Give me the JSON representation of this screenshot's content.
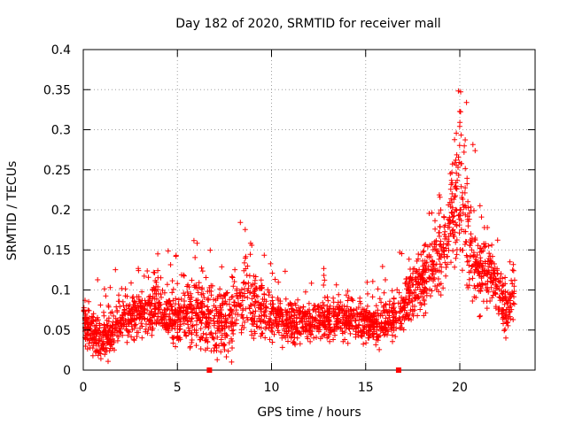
{
  "chart_data": {
    "type": "scatter",
    "title": "Day 182 of 2020, SRMTID for receiver mall",
    "xlabel": "GPS time / hours",
    "ylabel": "SRMTID / TECUs",
    "xlim": [
      0,
      24
    ],
    "ylim": [
      0,
      0.4
    ],
    "x_ticks": [
      0,
      5,
      10,
      15,
      20
    ],
    "x_tick_labels": [
      "0",
      "5",
      "10",
      "15",
      "20"
    ],
    "y_ticks": [
      0,
      0.05,
      0.1,
      0.15,
      0.2,
      0.25,
      0.3,
      0.35,
      0.4
    ],
    "y_tick_labels": [
      "0",
      "0.05",
      "0.1",
      "0.15",
      "0.2",
      "0.25",
      "0.3",
      "0.35",
      "0.4"
    ],
    "grid": true,
    "marker": "+",
    "color": "#ff0000",
    "gap_markers_x": [
      6.7,
      16.75
    ],
    "envelope": {
      "description": "approximate mean level vs hour (data is dense scatter around this)",
      "x": [
        0,
        0.5,
        1,
        2,
        3,
        4,
        5,
        6,
        7,
        8,
        8.5,
        9,
        10,
        11,
        12,
        13,
        14,
        15,
        16,
        17,
        17.5,
        18,
        19,
        19.5,
        20,
        20.5,
        21,
        21.5,
        22,
        22.5,
        23
      ],
      "y": [
        0.06,
        0.045,
        0.035,
        0.06,
        0.07,
        0.08,
        0.06,
        0.07,
        0.06,
        0.07,
        0.1,
        0.08,
        0.07,
        0.06,
        0.06,
        0.06,
        0.065,
        0.06,
        0.06,
        0.07,
        0.1,
        0.11,
        0.14,
        0.19,
        0.22,
        0.16,
        0.12,
        0.13,
        0.1,
        0.07,
        0.11
      ]
    },
    "spread": {
      "x": [
        0,
        2,
        4,
        8.3,
        10,
        12,
        16,
        18,
        19.5,
        20,
        20.3,
        21,
        22,
        23
      ],
      "y": [
        0.03,
        0.03,
        0.035,
        0.05,
        0.035,
        0.025,
        0.03,
        0.04,
        0.07,
        0.09,
        0.08,
        0.05,
        0.04,
        0.03
      ]
    }
  }
}
